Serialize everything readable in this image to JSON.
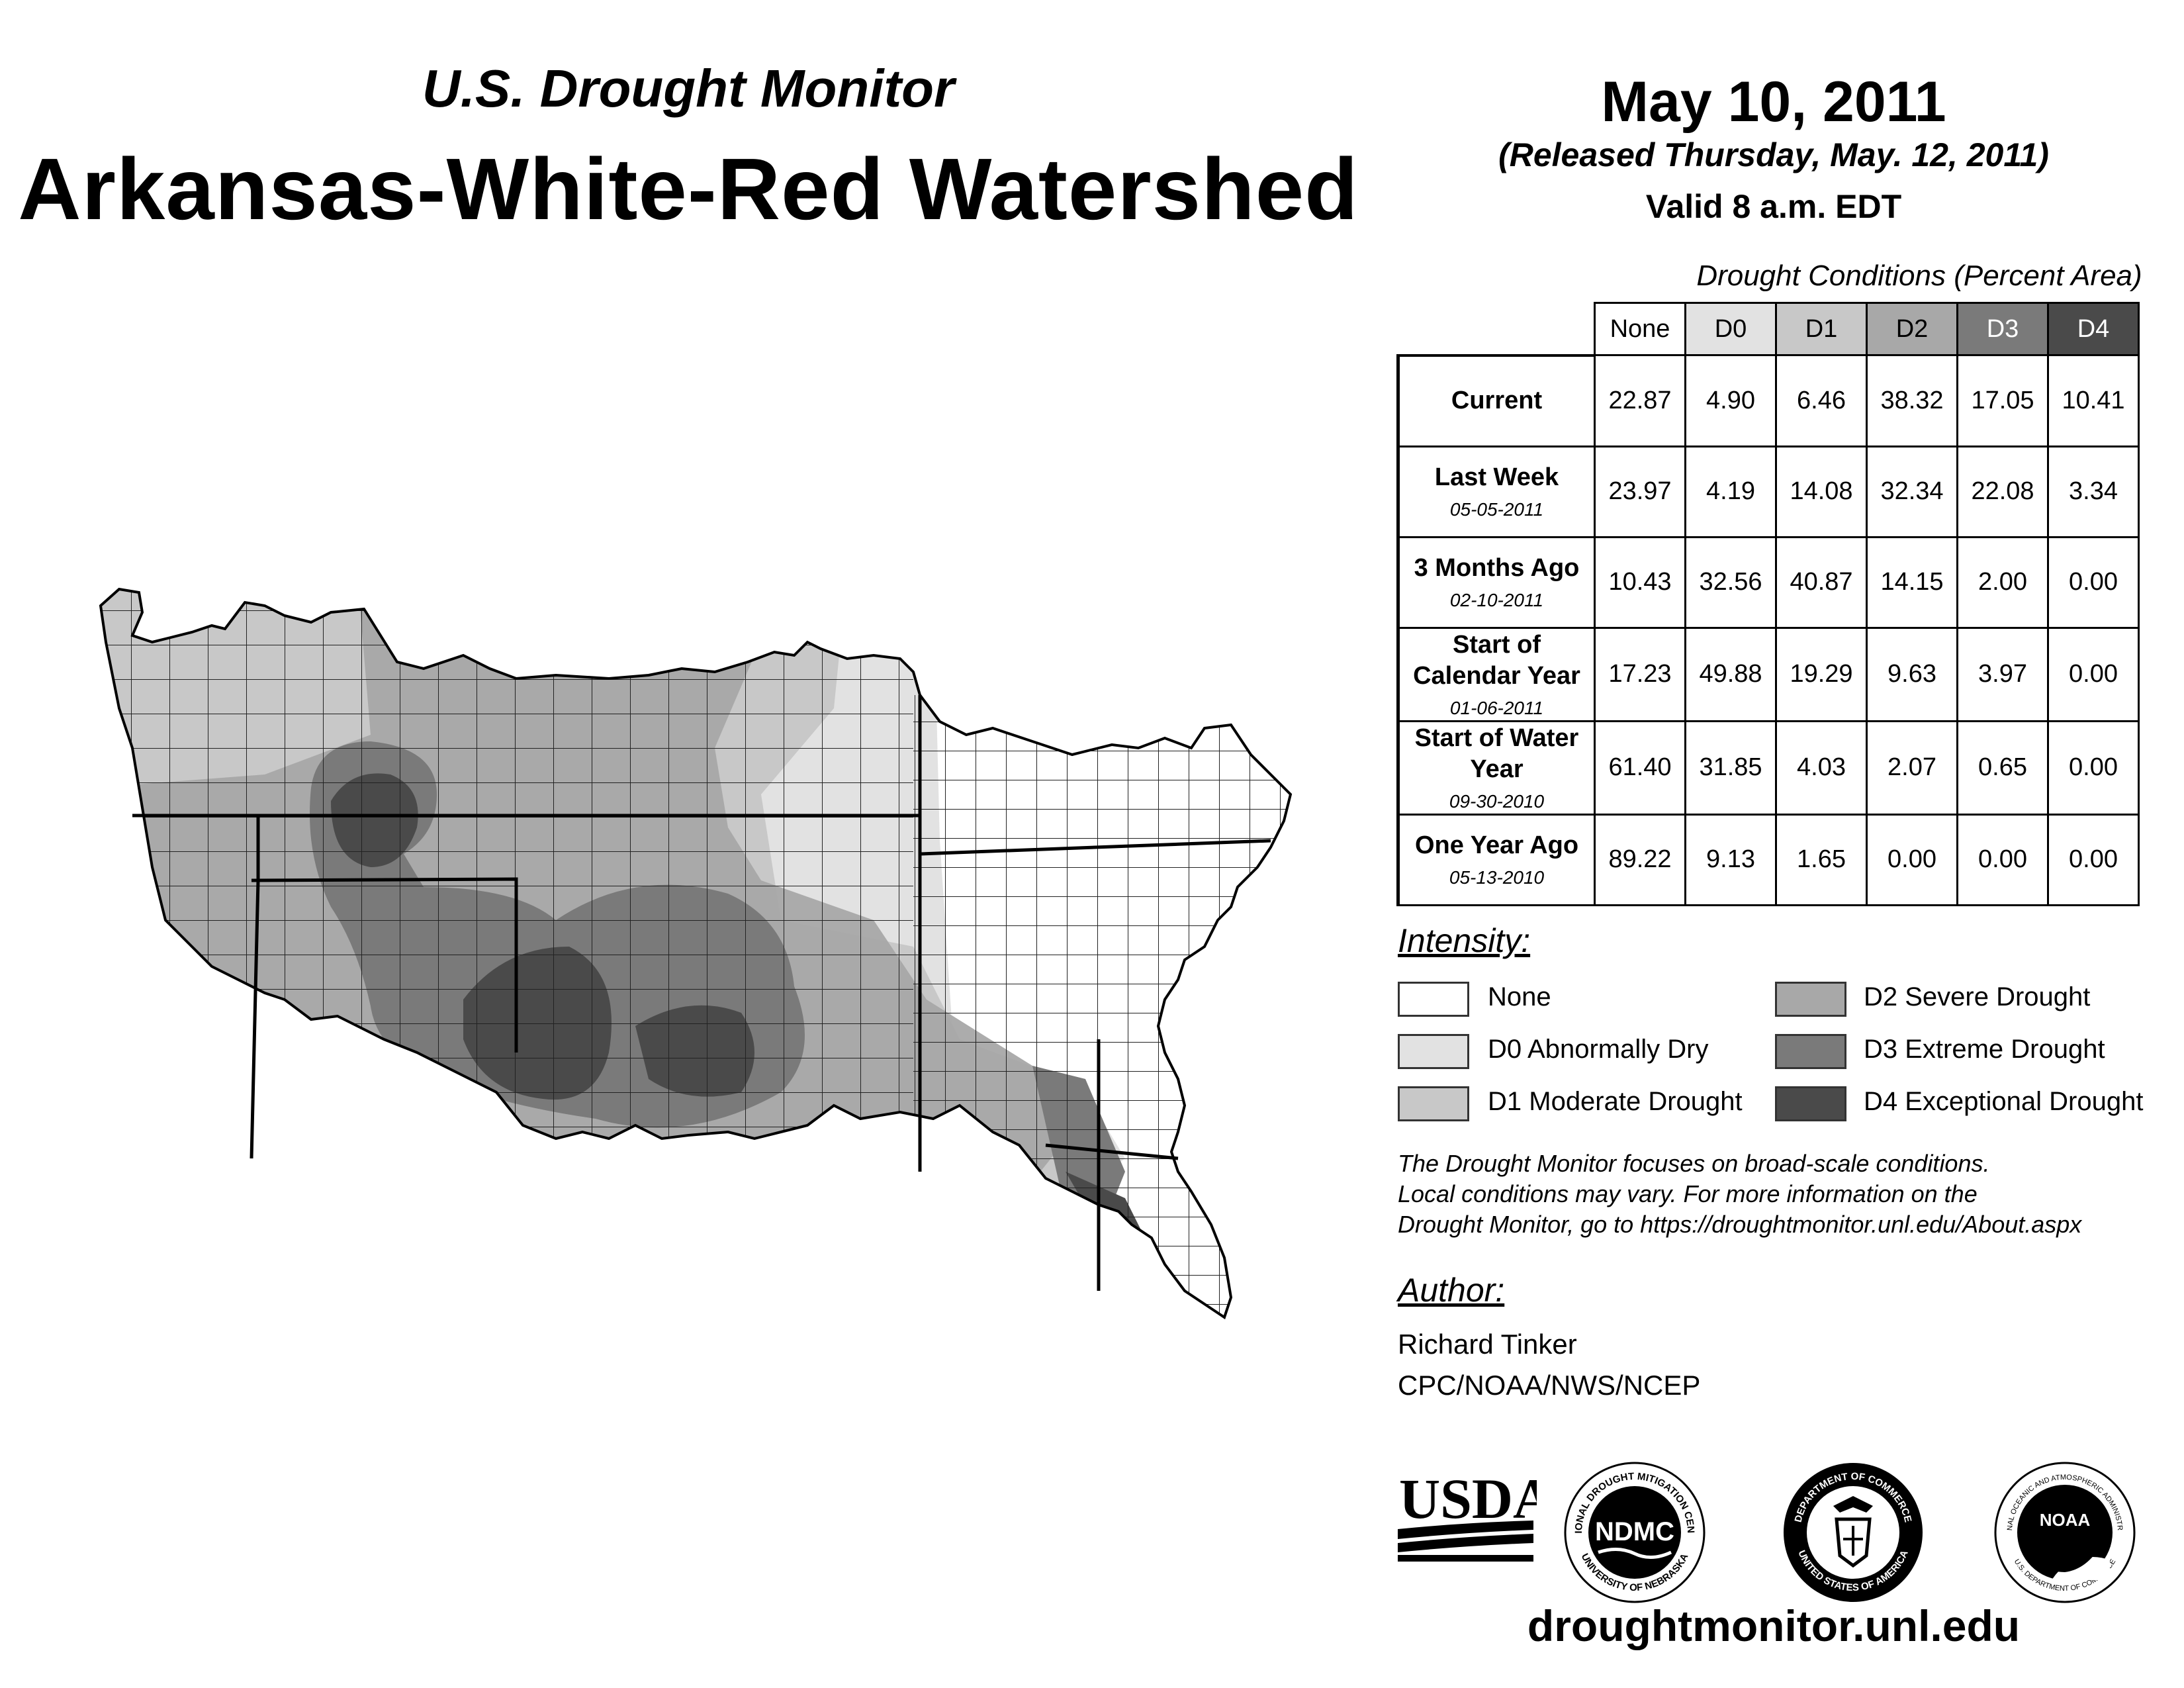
{
  "header": {
    "subtitle": "U.S. Drought Monitor",
    "title": "Arkansas-White-Red Watershed",
    "date": "May 10, 2011",
    "released": "(Released Thursday, May. 12, 2011)",
    "valid": "Valid 8 a.m. EDT"
  },
  "table": {
    "caption": "Drought Conditions (Percent Area)",
    "columns": [
      "None",
      "D0",
      "D1",
      "D2",
      "D3",
      "D4"
    ],
    "column_colors": [
      "#ffffff",
      "#e2e2e2",
      "#c8c8c8",
      "#a8a8a8",
      "#7a7a7a",
      "#4a4a4a"
    ],
    "rows": [
      {
        "label": "Current",
        "date": "",
        "values": [
          "22.87",
          "4.90",
          "6.46",
          "38.32",
          "17.05",
          "10.41"
        ]
      },
      {
        "label": "Last Week",
        "date": "05-05-2011",
        "values": [
          "23.97",
          "4.19",
          "14.08",
          "32.34",
          "22.08",
          "3.34"
        ]
      },
      {
        "label": "3 Months Ago",
        "date": "02-10-2011",
        "values": [
          "10.43",
          "32.56",
          "40.87",
          "14.15",
          "2.00",
          "0.00"
        ]
      },
      {
        "label": "Start of Calendar Year",
        "date": "01-06-2011",
        "values": [
          "17.23",
          "49.88",
          "19.29",
          "9.63",
          "3.97",
          "0.00"
        ]
      },
      {
        "label": "Start of Water Year",
        "date": "09-30-2010",
        "values": [
          "61.40",
          "31.85",
          "4.03",
          "2.07",
          "0.65",
          "0.00"
        ]
      },
      {
        "label": "One Year Ago",
        "date": "05-13-2010",
        "values": [
          "89.22",
          "9.13",
          "1.65",
          "0.00",
          "0.00",
          "0.00"
        ]
      }
    ]
  },
  "legend": {
    "heading": "Intensity:",
    "items": [
      {
        "label": "None",
        "color": "#ffffff"
      },
      {
        "label": "D0 Abnormally Dry",
        "color": "#e2e2e2"
      },
      {
        "label": "D1 Moderate Drought",
        "color": "#c8c8c8"
      },
      {
        "label": "D2 Severe Drought",
        "color": "#a8a8a8"
      },
      {
        "label": "D3 Extreme Drought",
        "color": "#7a7a7a"
      },
      {
        "label": "D4 Exceptional Drought",
        "color": "#4a4a4a"
      }
    ]
  },
  "note": {
    "line1": "The Drought Monitor focuses on broad-scale conditions.",
    "line2": "Local conditions may vary. For more information on the",
    "line3": "Drought Monitor, go to https://droughtmonitor.unl.edu/About.aspx"
  },
  "author": {
    "heading": "Author:",
    "name": "Richard Tinker",
    "org": "CPC/NOAA/NWS/NCEP"
  },
  "logos": {
    "usda": "USDA",
    "ndmc": "NDMC",
    "ndmc_ring_top": "NATIONAL DROUGHT MITIGATION CENTER",
    "ndmc_ring_bottom": "UNIVERSITY OF NEBRASKA",
    "doc_ring_top": "DEPARTMENT OF COMMERCE",
    "doc_ring_bottom": "UNITED STATES OF AMERICA",
    "noaa": "NOAA",
    "noaa_ring_top": "NATIONAL OCEANIC AND ATMOSPHERIC ADMINISTRATION",
    "noaa_ring_bottom": "U.S. DEPARTMENT OF COMMERCE"
  },
  "footer": {
    "url": "droughtmonitor.unl.edu"
  }
}
